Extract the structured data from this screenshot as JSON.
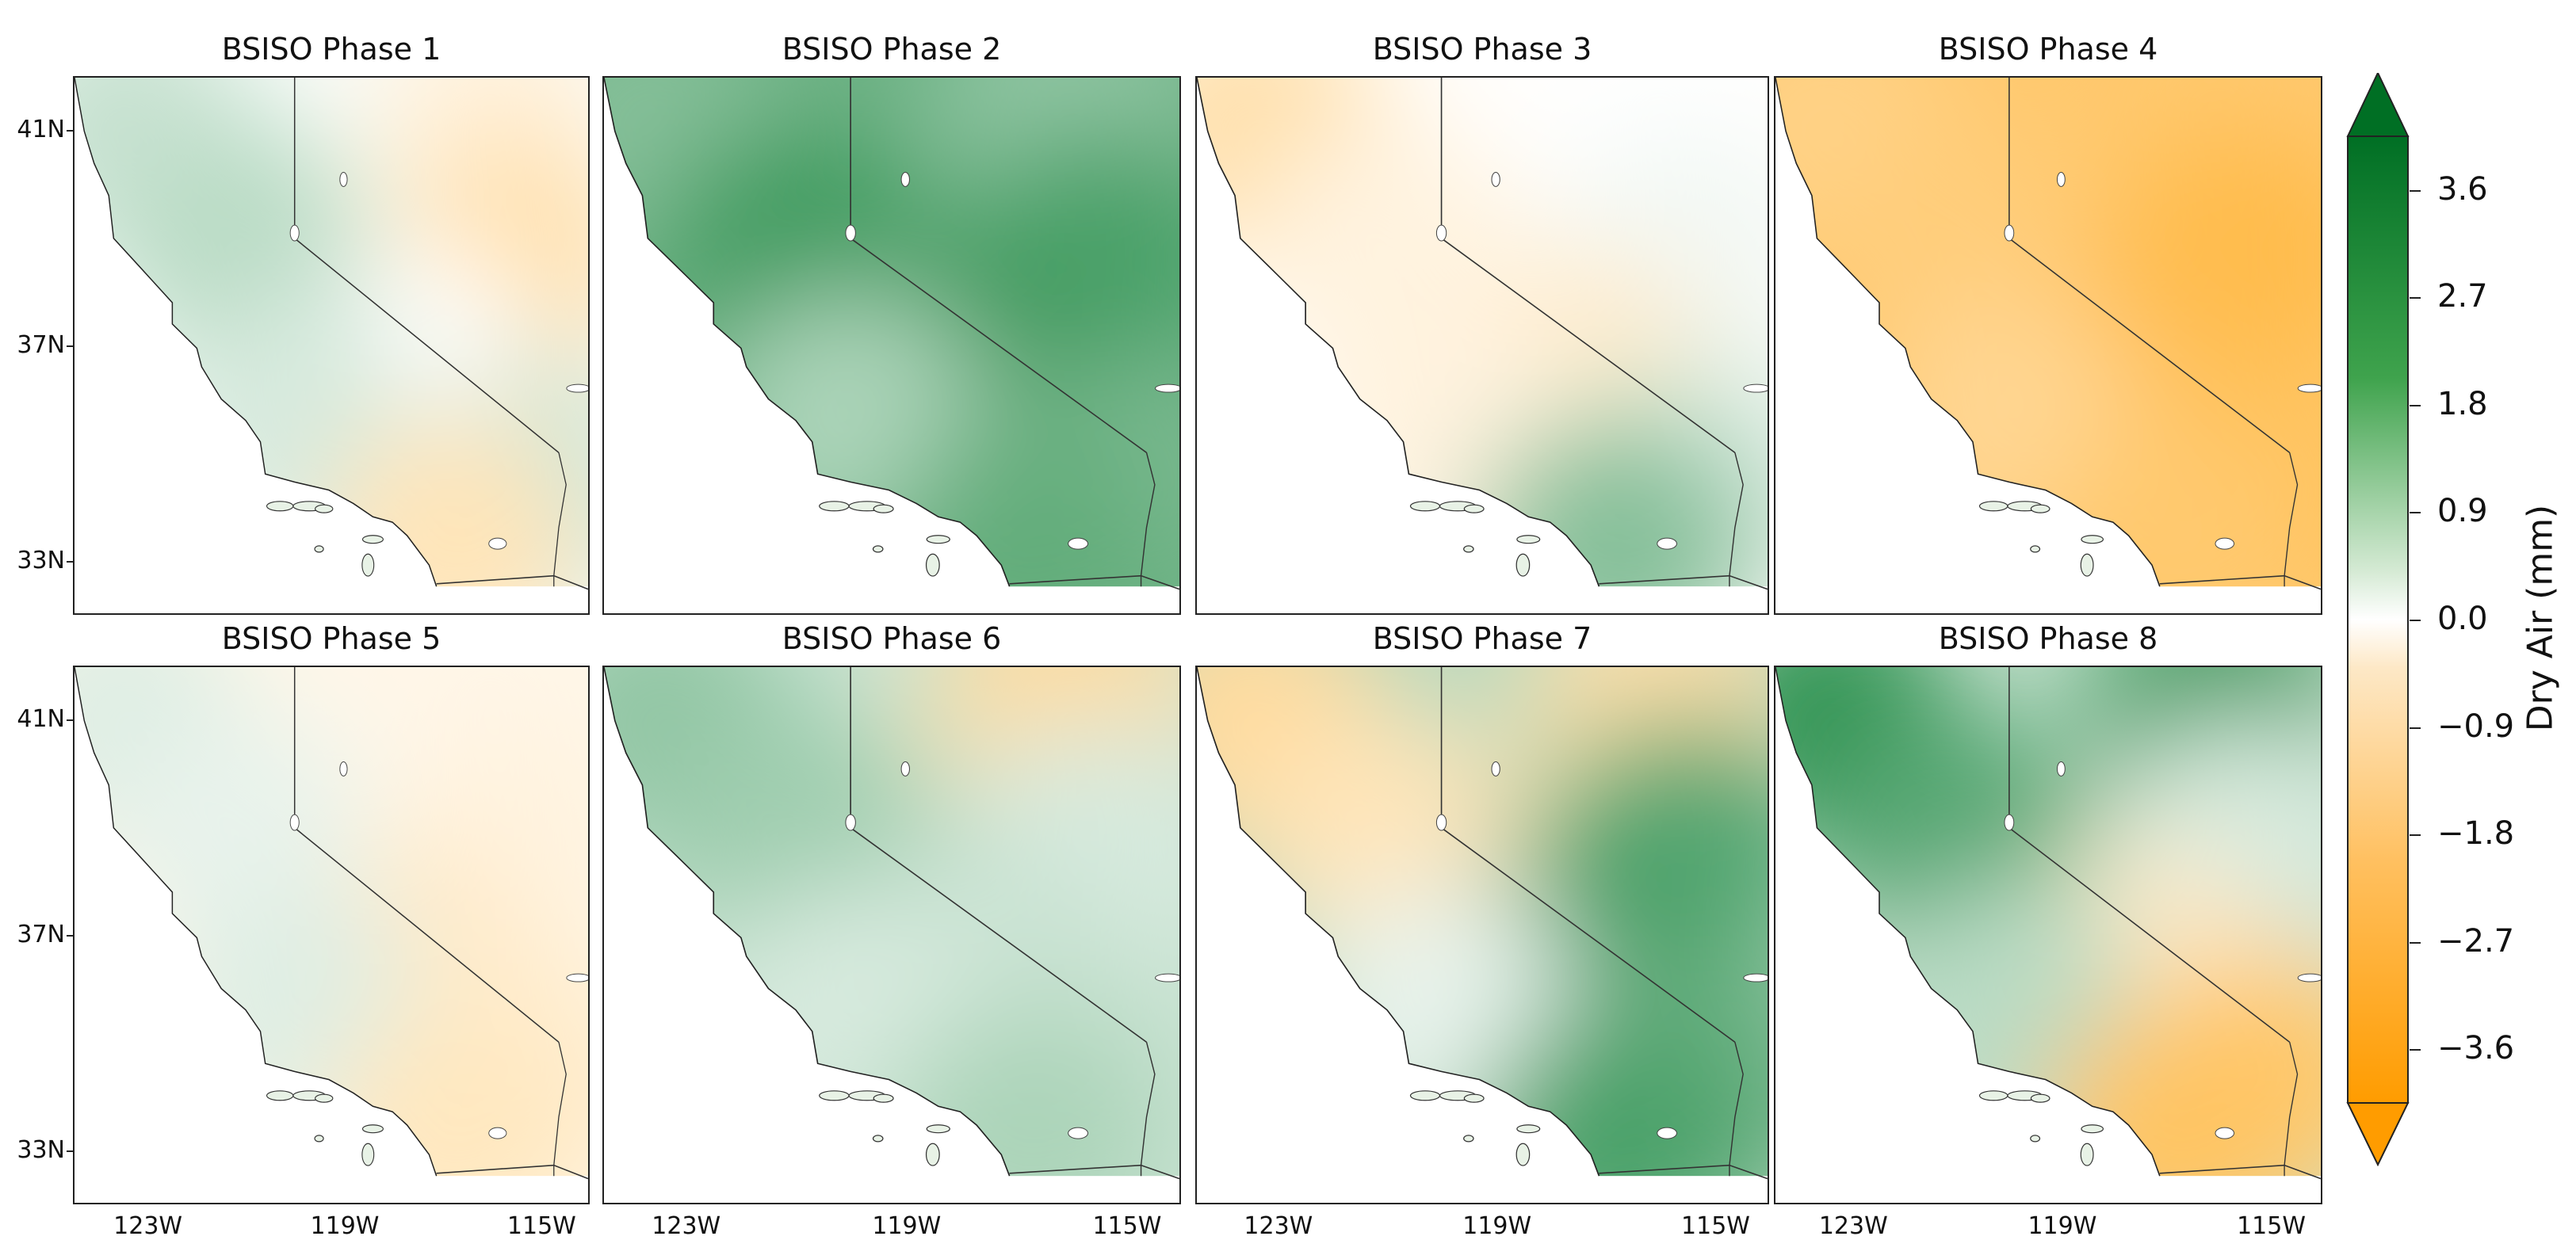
{
  "figure": {
    "panels": [
      {
        "title": "BSISO Phase 1",
        "pattern": [
          0.6,
          -0.3,
          0.8,
          -0.9,
          0.0,
          0.5,
          0.4,
          -0.8
        ]
      },
      {
        "title": "BSISO Phase 2",
        "pattern": [
          1.6,
          1.4,
          2.8,
          2.6,
          2.9,
          1.8,
          1.0,
          2.2
        ]
      },
      {
        "title": "BSISO Phase 3",
        "pattern": [
          -1.0,
          0.0,
          -0.3,
          0.1,
          -0.6,
          0.4,
          -0.3,
          1.6
        ]
      },
      {
        "title": "BSISO Phase 4",
        "pattern": [
          -1.6,
          -2.0,
          -1.8,
          -2.6,
          -2.5,
          -2.3,
          -1.4,
          -2.0
        ]
      },
      {
        "title": "BSISO Phase 5",
        "pattern": [
          0.3,
          -0.2,
          0.2,
          -0.3,
          -0.6,
          -0.5,
          0.3,
          -0.7
        ]
      },
      {
        "title": "BSISO Phase 6",
        "pattern": [
          1.4,
          -1.2,
          1.2,
          0.4,
          0.6,
          0.6,
          0.4,
          1.0
        ]
      },
      {
        "title": "BSISO Phase 7",
        "pattern": [
          -1.2,
          -1.0,
          -0.8,
          2.4,
          2.8,
          2.0,
          0.2,
          2.6
        ]
      },
      {
        "title": "BSISO Phase 8",
        "pattern": [
          3.0,
          2.8,
          2.4,
          0.4,
          -0.6,
          -2.0,
          0.8,
          -2.2
        ]
      }
    ],
    "lat_ticks": [
      "41N",
      "37N",
      "33N"
    ],
    "lon_ticks": [
      "123W",
      "119W",
      "115W"
    ]
  },
  "colorbar": {
    "label": "Dry Air (mm)",
    "ticks": [
      "3.6",
      "2.7",
      "1.8",
      "0.9",
      "0.0",
      "−0.9",
      "−1.8",
      "−2.7",
      "−3.6"
    ],
    "tick_values": [
      3.6,
      2.7,
      1.8,
      0.9,
      0.0,
      -0.9,
      -1.8,
      -2.7,
      -3.6
    ],
    "range": [
      -4.05,
      4.05
    ],
    "extend": "both",
    "colors": {
      "positive": "#007a2a",
      "zero": "#ffffff",
      "negative": "#ffa000"
    }
  },
  "map_extent": {
    "lon": [
      -124.5,
      -114
    ],
    "lat": [
      32,
      42
    ]
  },
  "colors": {
    "outline": "#222222",
    "grid": "#cccccc"
  }
}
